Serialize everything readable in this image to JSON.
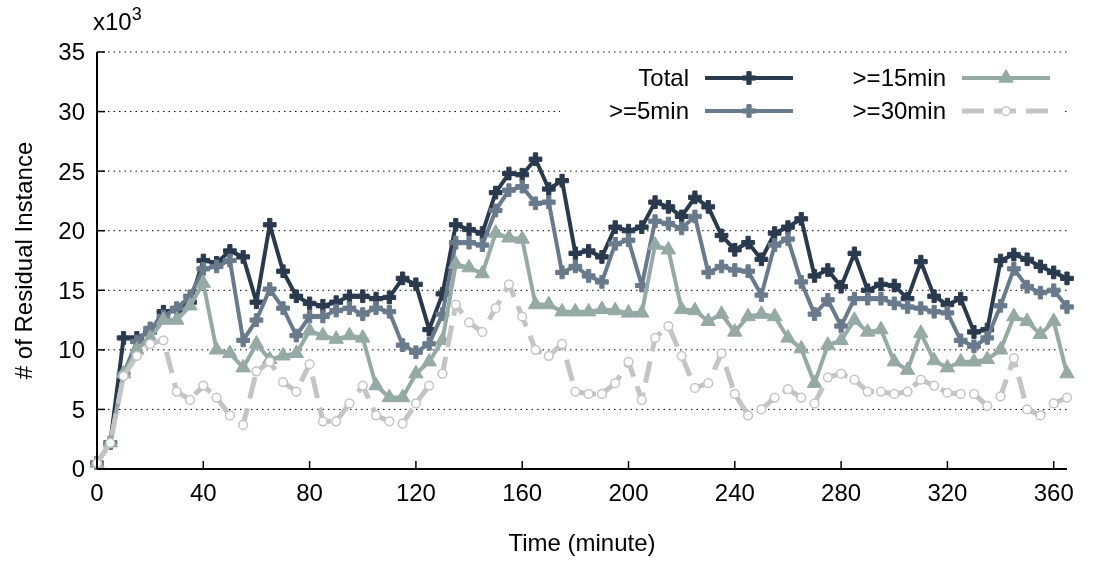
{
  "chart_data": {
    "type": "line",
    "xlabel": "Time (minute)",
    "ylabel": "# of Residual Instance",
    "annotations": [
      "x10$^{3}$"
    ],
    "x": [
      0,
      5,
      10,
      15,
      20,
      25,
      30,
      35,
      40,
      45,
      50,
      55,
      60,
      65,
      70,
      75,
      80,
      85,
      90,
      95,
      100,
      105,
      110,
      115,
      120,
      125,
      130,
      135,
      140,
      145,
      150,
      155,
      160,
      165,
      170,
      175,
      180,
      185,
      190,
      195,
      200,
      205,
      210,
      215,
      220,
      225,
      230,
      235,
      240,
      245,
      250,
      255,
      260,
      265,
      270,
      275,
      280,
      285,
      290,
      295,
      300,
      305,
      310,
      315,
      320,
      325,
      330,
      335,
      340,
      345,
      350,
      355,
      360,
      365
    ],
    "xlim": [
      0,
      365
    ],
    "xticks": [
      0,
      40,
      80,
      120,
      160,
      200,
      240,
      280,
      320,
      360
    ],
    "ylim": [
      0,
      35
    ],
    "yticks": [
      0,
      5,
      10,
      15,
      20,
      25,
      30,
      35
    ],
    "grid": "y",
    "legend": "top right",
    "series": [
      {
        "name": "Total",
        "color": "#2a3a4e",
        "marker": "cross",
        "line_style": "solid",
        "values": [
          0.5,
          2.2,
          11,
          11,
          11.5,
          13.2,
          13.3,
          14,
          17.5,
          17.3,
          18.3,
          17.8,
          14,
          20.5,
          16.6,
          14.5,
          13.9,
          13.7,
          14,
          14.5,
          14.5,
          14.3,
          14.4,
          16,
          15.5,
          11.7,
          14.7,
          20.5,
          20.1,
          19.8,
          23.2,
          24.8,
          24.7,
          26,
          23.5,
          24.2,
          18.1,
          18.3,
          17.8,
          20.3,
          20,
          20.3,
          22.4,
          22,
          21.2,
          22.8,
          22,
          19.6,
          18.4,
          19,
          17.6,
          19.8,
          20.3,
          21,
          16.2,
          16.7,
          15.3,
          18.1,
          15,
          15.5,
          15.4,
          14.3,
          17.4,
          14.5,
          13.8,
          14.3,
          11.5,
          11.7,
          17.5,
          18,
          17.6,
          17,
          16.5,
          16
        ]
      },
      {
        "name": ">=5min",
        "color": "#687a8c",
        "marker": "cross",
        "line_style": "solid",
        "values": [
          0.5,
          2.2,
          8,
          10.7,
          11.8,
          12.8,
          13.5,
          14.5,
          16.8,
          17,
          17.5,
          10.8,
          12.5,
          15.1,
          13.5,
          11.2,
          12.8,
          12.8,
          13.3,
          13.5,
          13,
          13.5,
          13.2,
          10.4,
          9.8,
          10.5,
          13,
          19,
          19,
          18.8,
          21.7,
          23.4,
          23.7,
          22.3,
          22.4,
          16.5,
          17,
          16.2,
          15.7,
          18.9,
          19.2,
          15.4,
          20.8,
          20.6,
          20.2,
          21.2,
          16.5,
          17,
          16.7,
          16.6,
          14.6,
          18.8,
          19.3,
          15.7,
          13,
          14.2,
          12,
          14.3,
          14.3,
          14.3,
          13.9,
          13.6,
          13.5,
          13.2,
          13.1,
          10.8,
          10.3,
          11,
          13.7,
          16.8,
          15.3,
          14.8,
          15,
          13.6
        ]
      },
      {
        "name": ">=15min",
        "color": "#95aaa5",
        "marker": "triangle",
        "line_style": "solid",
        "values": [
          0.5,
          2.2,
          8,
          10,
          11,
          12.5,
          12.5,
          13.7,
          15.6,
          10,
          9.7,
          8.5,
          10.5,
          9.2,
          9.5,
          9.7,
          11.6,
          11.2,
          10.9,
          11.2,
          11,
          7,
          6,
          6,
          8,
          9,
          10.8,
          17.2,
          16.9,
          16.4,
          19.8,
          19.4,
          19.3,
          13.8,
          13.8,
          13.2,
          13.2,
          13.2,
          13.4,
          13.3,
          13.1,
          13.1,
          18.8,
          18.4,
          13.4,
          13.3,
          12.4,
          13,
          11.5,
          12.8,
          13,
          12.8,
          11,
          10.1,
          7.2,
          10.4,
          10.8,
          12.5,
          11.5,
          11.7,
          9,
          8.3,
          11.4,
          9.1,
          8.5,
          9,
          9,
          9.2,
          10,
          12.8,
          12.4,
          11.3,
          12.4,
          8
        ]
      },
      {
        "name": ">=30min",
        "color": "#c4c4c4",
        "marker": "circle",
        "line_style": "dashed",
        "values": [
          0.5,
          2.2,
          7.8,
          9.5,
          10.5,
          10.8,
          6.5,
          5.8,
          7,
          6,
          4.5,
          3.7,
          8.2,
          9,
          7.3,
          6.5,
          8.8,
          4,
          4,
          5.5,
          7,
          4.5,
          4,
          3.8,
          5.5,
          7,
          8,
          13.8,
          12.3,
          11.5,
          13.5,
          15.5,
          12.8,
          10,
          9.5,
          10.5,
          6.5,
          6.3,
          6.3,
          7.2,
          9,
          5.8,
          11,
          12,
          9.5,
          6.8,
          7.2,
          9.7,
          6.3,
          4.5,
          5,
          6,
          6.7,
          6,
          5.5,
          7.7,
          8,
          7.5,
          6.5,
          6.5,
          6.3,
          6.5,
          7.5,
          7,
          6.4,
          6.3,
          6.3,
          5.3,
          6.1,
          9.3,
          5,
          4.5,
          5.5,
          6
        ]
      }
    ]
  }
}
